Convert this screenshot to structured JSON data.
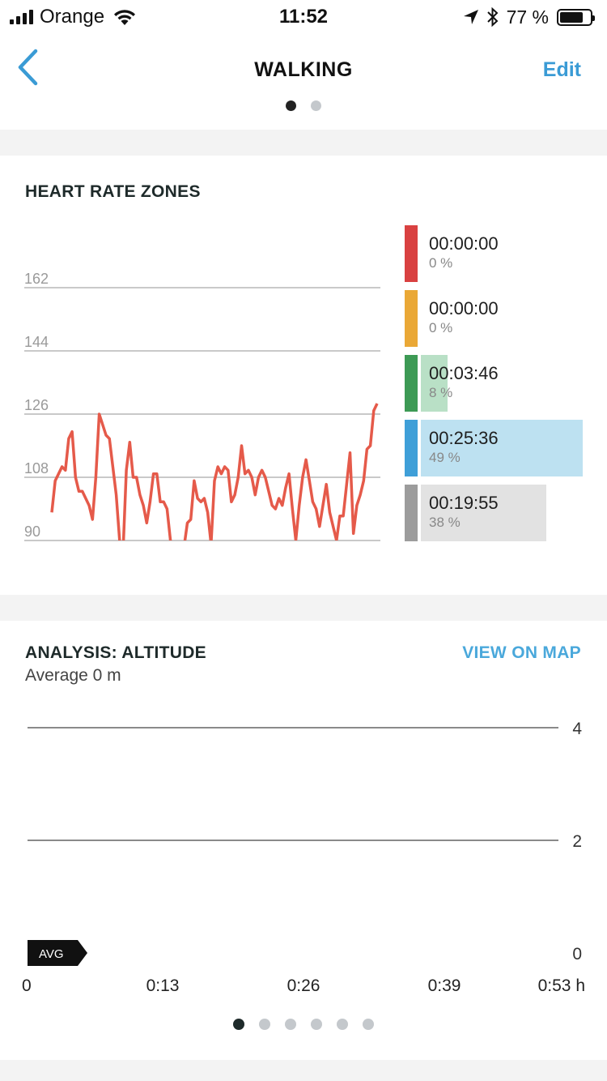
{
  "status_bar": {
    "carrier": "Orange",
    "time": "11:52",
    "battery_pct": "77 %",
    "battery_level": 0.77
  },
  "nav": {
    "title": "WALKING",
    "edit_label": "Edit"
  },
  "heart_rate": {
    "title": "HEART RATE ZONES",
    "chart_data": {
      "type": "line",
      "y_ticks": [
        "162",
        "144",
        "126",
        "108",
        "90"
      ],
      "ylim": [
        90,
        180
      ],
      "line_color": "#e55a4a",
      "values": [
        98,
        107,
        109,
        111,
        110,
        119,
        121,
        108,
        104,
        104,
        102,
        100,
        96,
        108,
        126,
        123,
        120,
        119,
        111,
        103,
        90,
        86,
        110,
        118,
        108,
        108,
        103,
        100,
        95,
        101,
        109,
        109,
        101,
        101,
        99,
        90,
        85,
        80,
        82,
        88,
        95,
        96,
        107,
        102,
        101,
        102,
        98,
        89,
        107,
        111,
        109,
        111,
        110,
        101,
        103,
        108,
        117,
        109,
        110,
        108,
        103,
        108,
        110,
        108,
        104,
        100,
        99,
        102,
        100,
        105,
        109,
        99,
        90,
        100,
        108,
        113,
        107,
        101,
        99,
        94,
        100,
        106,
        98,
        94,
        90,
        97,
        97,
        106,
        115,
        92,
        100,
        103,
        107,
        116,
        117,
        127,
        129
      ]
    },
    "zones": [
      {
        "time": "00:00:00",
        "pct": "0 %",
        "fraction": 0.0,
        "color": "#d94141",
        "bar_color": "#f4cccc"
      },
      {
        "time": "00:00:00",
        "pct": "0 %",
        "fraction": 0.0,
        "color": "#eaa836",
        "bar_color": "#f7e2b8"
      },
      {
        "time": "00:03:46",
        "pct": "8 %",
        "fraction": 0.08,
        "color": "#3d9a55",
        "bar_color": "#b9e0c6"
      },
      {
        "time": "00:25:36",
        "pct": "49 %",
        "fraction": 0.49,
        "color": "#3f9fd8",
        "bar_color": "#bde1f1"
      },
      {
        "time": "00:19:55",
        "pct": "38 %",
        "fraction": 0.38,
        "color": "#9c9c9c",
        "bar_color": "#e2e2e2"
      }
    ]
  },
  "altitude": {
    "title": "ANALYSIS: ALTITUDE",
    "view_on_map": "VIEW ON MAP",
    "average": "Average 0 m",
    "chart_data": {
      "type": "line",
      "y_ticks": [
        "4",
        "2",
        "0"
      ],
      "ylim": [
        0,
        4
      ],
      "x_labels": [
        "0",
        "0:13",
        "0:26",
        "0:39",
        "0:53 h"
      ],
      "avg_label": "AVG",
      "average_value": 0
    }
  }
}
